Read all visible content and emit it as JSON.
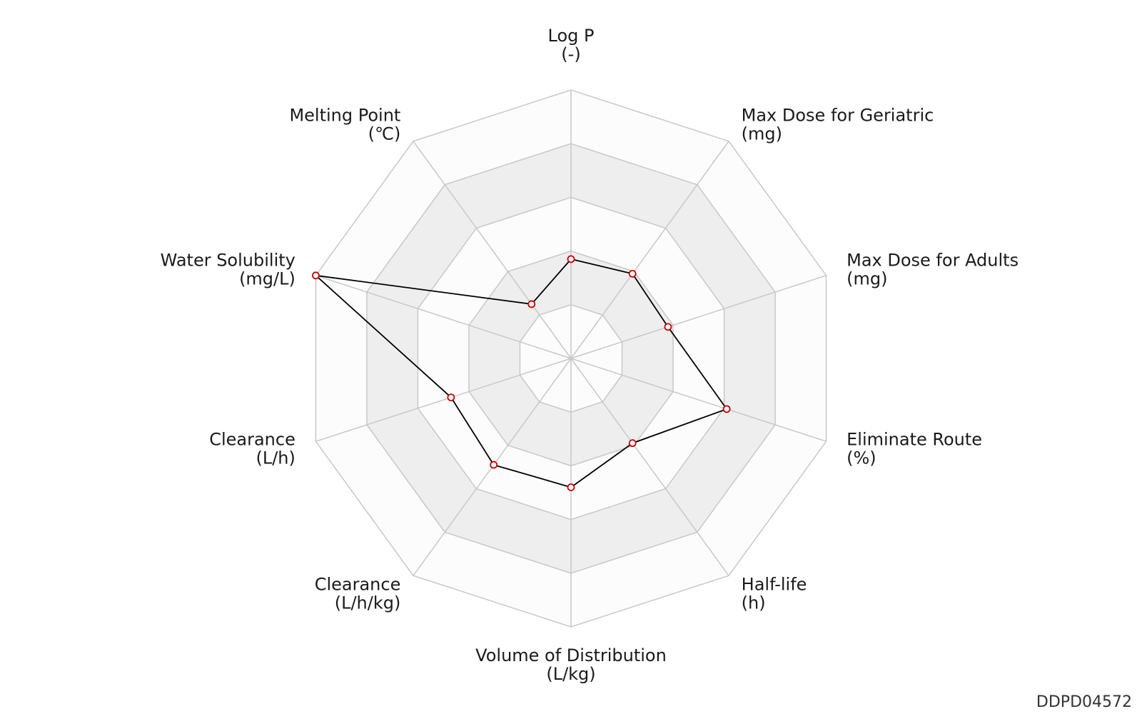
{
  "chart_data": {
    "type": "radar",
    "axes": [
      {
        "name": "Log P",
        "unit": "(-)"
      },
      {
        "name": "Max Dose for Geriatric",
        "unit": "(mg)"
      },
      {
        "name": "Max Dose for Adults",
        "unit": "(mg)"
      },
      {
        "name": "Eliminate Route",
        "unit": "(%)"
      },
      {
        "name": "Half-life",
        "unit": "(h)"
      },
      {
        "name": "Volume of Distribution",
        "unit": "(L/kg)"
      },
      {
        "name": "Clearance",
        "unit": "(L/h/kg)"
      },
      {
        "name": "Clearance",
        "unit": "(L/h)"
      },
      {
        "name": "Water Solubility",
        "unit": "(mg/L)"
      },
      {
        "name": "Melting Point",
        "unit": "(℃)"
      }
    ],
    "scale": [
      0,
      1
    ],
    "rings": 5,
    "alternate_ring_shading": true,
    "series": [
      {
        "values": [
          0.37,
          0.39,
          0.38,
          0.61,
          0.39,
          0.48,
          0.49,
          0.47,
          1.0,
          0.25
        ]
      }
    ],
    "colors": {
      "line": "#000000",
      "marker": "#cc0000",
      "grid": "#c8c8c8",
      "band": "#eeeeee"
    }
  },
  "watermark": "DDPD04572"
}
